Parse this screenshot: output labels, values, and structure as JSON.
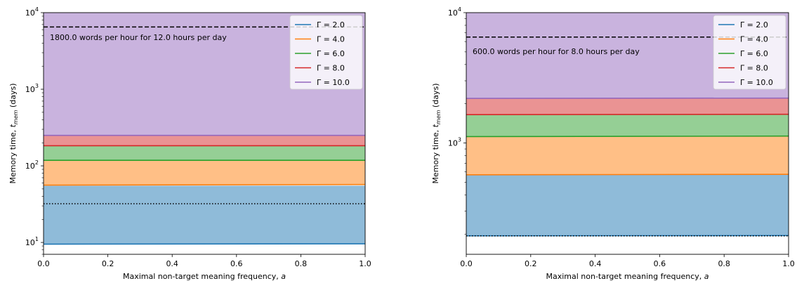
{
  "chart_data": [
    {
      "type": "area",
      "xlabel": "Maximal non-target meaning frequency, a",
      "ylabel": "Memory time, t_mem (days)",
      "xlim": [
        0.0,
        1.0
      ],
      "ylim": [
        7,
        10000
      ],
      "yscale": "log",
      "x_ticks": [
        "0.0",
        "0.2",
        "0.4",
        "0.6",
        "0.8",
        "1.0"
      ],
      "y_ticks": [
        "10^1",
        "10^2",
        "10^3",
        "10^4"
      ],
      "annotation": "1800.0 words per hour for 12.0 hours per day",
      "legend_position": "upper right",
      "x": [
        0.0,
        1.0
      ],
      "series": [
        {
          "name": "Γ = 2.0",
          "color": "#1f77b4",
          "values": [
            9.5,
            9.6
          ],
          "upper": [
            55,
            55
          ]
        },
        {
          "name": "Γ = 4.0",
          "color": "#ff7f0e",
          "values": [
            56,
            57
          ],
          "upper": [
            117,
            117
          ]
        },
        {
          "name": "Γ = 6.0",
          "color": "#2ca02c",
          "values": [
            118,
            118
          ],
          "upper": [
            182,
            182
          ]
        },
        {
          "name": "Γ = 8.0",
          "color": "#d62728",
          "values": [
            183,
            183
          ],
          "upper": [
            250,
            250
          ]
        },
        {
          "name": "Γ = 10.0",
          "color": "#9467bd",
          "values": [
            250,
            250
          ],
          "upper": [
            10000,
            10000
          ]
        }
      ],
      "hlines": [
        {
          "style": "dashed",
          "value": 6500
        },
        {
          "style": "dotted",
          "value": 32
        }
      ]
    },
    {
      "type": "area",
      "xlabel": "Maximal non-target meaning frequency, a",
      "ylabel": "Memory time, t_mem (days)",
      "xlim": [
        0.0,
        1.0
      ],
      "ylim": [
        140,
        10000
      ],
      "yscale": "log",
      "x_ticks": [
        "0.0",
        "0.2",
        "0.4",
        "0.6",
        "0.8",
        "1.0"
      ],
      "y_ticks": [
        "10^3",
        "10^4"
      ],
      "annotation": "600.0 words per hour for 8.0 hours per day",
      "legend_position": "upper right",
      "x": [
        0.0,
        1.0
      ],
      "series": [
        {
          "name": "Γ = 2.0",
          "color": "#1f77b4",
          "values": [
            194,
            195
          ],
          "upper": [
            570,
            570
          ]
        },
        {
          "name": "Γ = 4.0",
          "color": "#ff7f0e",
          "values": [
            570,
            575
          ],
          "upper": [
            1120,
            1120
          ]
        },
        {
          "name": "Γ = 6.0",
          "color": "#2ca02c",
          "values": [
            1120,
            1130
          ],
          "upper": [
            1650,
            1650
          ]
        },
        {
          "name": "Γ = 8.0",
          "color": "#d62728",
          "values": [
            1650,
            1660
          ],
          "upper": [
            2200,
            2200
          ]
        },
        {
          "name": "Γ = 10.0",
          "color": "#9467bd",
          "values": [
            2200,
            2210
          ],
          "upper": [
            10000,
            10000
          ]
        }
      ],
      "hlines": [
        {
          "style": "dashed",
          "value": 6500
        },
        {
          "style": "dotted",
          "value": 194
        }
      ]
    }
  ]
}
